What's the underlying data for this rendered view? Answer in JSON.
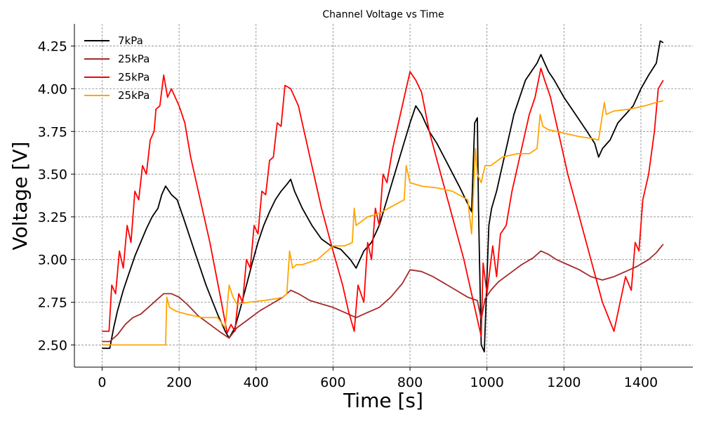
{
  "chart_data": {
    "type": "line",
    "title": "Channel Voltage vs Time",
    "xlabel": "Time [s]",
    "ylabel": "Voltage [V]",
    "xlim": [
      -72,
      1535
    ],
    "ylim": [
      2.37,
      4.38
    ],
    "xticks": [
      0,
      200,
      400,
      600,
      800,
      1000,
      1200,
      1400
    ],
    "yticks": [
      2.5,
      2.75,
      3.0,
      3.25,
      3.5,
      3.75,
      4.0,
      4.25
    ],
    "xtick_labels": [
      "0",
      "200",
      "400",
      "600",
      "800",
      "1000",
      "1200",
      "1400"
    ],
    "ytick_labels": [
      "2.50",
      "2.75",
      "3.00",
      "3.25",
      "3.50",
      "3.75",
      "4.00",
      "4.25"
    ],
    "grid": true,
    "legend_position": "top-left",
    "series": [
      {
        "name": "7kPa",
        "color": "#000000",
        "x": [
          0,
          20,
          30,
          40,
          55,
          70,
          85,
          100,
          115,
          130,
          145,
          155,
          165,
          180,
          195,
          215,
          240,
          270,
          300,
          320,
          330,
          345,
          360,
          375,
          390,
          405,
          420,
          435,
          450,
          465,
          480,
          490,
          500,
          520,
          545,
          570,
          595,
          620,
          645,
          660,
          680,
          700,
          720,
          740,
          760,
          780,
          800,
          815,
          830,
          850,
          870,
          900,
          930,
          960,
          968,
          975,
          978,
          985,
          993,
          1000,
          1005,
          1012,
          1025,
          1040,
          1055,
          1070,
          1085,
          1100,
          1115,
          1130,
          1140,
          1150,
          1160,
          1175,
          1200,
          1230,
          1260,
          1280,
          1290,
          1300,
          1320,
          1340,
          1360,
          1380,
          1400,
          1420,
          1440,
          1450,
          1458
        ],
        "y": [
          2.48,
          2.48,
          2.6,
          2.7,
          2.82,
          2.92,
          3.02,
          3.1,
          3.18,
          3.25,
          3.3,
          3.38,
          3.43,
          3.38,
          3.35,
          3.22,
          3.05,
          2.85,
          2.68,
          2.58,
          2.54,
          2.6,
          2.72,
          2.85,
          2.98,
          3.1,
          3.2,
          3.28,
          3.35,
          3.4,
          3.44,
          3.47,
          3.4,
          3.3,
          3.2,
          3.12,
          3.08,
          3.06,
          3.0,
          2.95,
          3.05,
          3.1,
          3.2,
          3.35,
          3.5,
          3.65,
          3.8,
          3.9,
          3.85,
          3.75,
          3.68,
          3.55,
          3.42,
          3.28,
          3.8,
          3.83,
          3.3,
          2.5,
          2.46,
          2.9,
          3.2,
          3.3,
          3.4,
          3.55,
          3.7,
          3.85,
          3.95,
          4.05,
          4.1,
          4.15,
          4.2,
          4.15,
          4.1,
          4.05,
          3.95,
          3.85,
          3.75,
          3.68,
          3.6,
          3.65,
          3.7,
          3.8,
          3.85,
          3.9,
          4.0,
          4.08,
          4.15,
          4.28,
          4.27
        ]
      },
      {
        "name": "25kPa",
        "color": "#a52a2a",
        "x": [
          0,
          20,
          40,
          60,
          80,
          100,
          120,
          140,
          160,
          180,
          200,
          220,
          250,
          280,
          310,
          330,
          350,
          380,
          410,
          440,
          470,
          490,
          510,
          540,
          570,
          600,
          630,
          660,
          690,
          720,
          750,
          780,
          800,
          830,
          860,
          890,
          920,
          950,
          975,
          985,
          995,
          1010,
          1030,
          1060,
          1090,
          1120,
          1140,
          1160,
          1180,
          1210,
          1240,
          1270,
          1300,
          1330,
          1360,
          1390,
          1420,
          1440,
          1458
        ],
        "y": [
          2.52,
          2.52,
          2.56,
          2.62,
          2.66,
          2.68,
          2.72,
          2.76,
          2.8,
          2.8,
          2.78,
          2.74,
          2.67,
          2.62,
          2.57,
          2.54,
          2.6,
          2.65,
          2.7,
          2.74,
          2.78,
          2.82,
          2.8,
          2.76,
          2.74,
          2.72,
          2.69,
          2.66,
          2.69,
          2.72,
          2.78,
          2.86,
          2.94,
          2.93,
          2.9,
          2.86,
          2.82,
          2.78,
          2.76,
          2.65,
          2.77,
          2.82,
          2.87,
          2.92,
          2.97,
          3.01,
          3.05,
          3.03,
          3.0,
          2.97,
          2.94,
          2.9,
          2.88,
          2.9,
          2.93,
          2.96,
          3.0,
          3.04,
          3.09
        ]
      },
      {
        "name": "25kPa",
        "color": "#ff0000",
        "x": [
          0,
          18,
          25,
          35,
          45,
          55,
          65,
          75,
          85,
          95,
          105,
          115,
          125,
          135,
          140,
          150,
          160,
          170,
          180,
          200,
          215,
          230,
          250,
          280,
          310,
          325,
          335,
          345,
          355,
          365,
          375,
          385,
          395,
          405,
          415,
          425,
          435,
          445,
          455,
          465,
          475,
          490,
          510,
          540,
          570,
          600,
          625,
          640,
          655,
          665,
          680,
          690,
          700,
          710,
          720,
          730,
          740,
          755,
          770,
          785,
          800,
          815,
          830,
          850,
          880,
          910,
          940,
          965,
          985,
          990,
          1000,
          1015,
          1025,
          1035,
          1050,
          1065,
          1080,
          1095,
          1110,
          1125,
          1140,
          1150,
          1165,
          1175,
          1190,
          1210,
          1240,
          1270,
          1300,
          1330,
          1360,
          1375,
          1385,
          1395,
          1405,
          1420,
          1435,
          1445,
          1458
        ],
        "y": [
          2.58,
          2.58,
          2.85,
          2.8,
          3.05,
          2.95,
          3.2,
          3.1,
          3.4,
          3.35,
          3.55,
          3.5,
          3.7,
          3.75,
          3.88,
          3.9,
          4.08,
          3.95,
          4.0,
          3.9,
          3.8,
          3.6,
          3.4,
          3.1,
          2.75,
          2.57,
          2.62,
          2.58,
          2.8,
          2.75,
          3.0,
          2.95,
          3.2,
          3.15,
          3.4,
          3.38,
          3.58,
          3.6,
          3.8,
          3.78,
          4.02,
          4.0,
          3.9,
          3.6,
          3.3,
          3.05,
          2.85,
          2.7,
          2.58,
          2.85,
          2.75,
          3.1,
          3.0,
          3.3,
          3.2,
          3.5,
          3.45,
          3.65,
          3.8,
          3.95,
          4.1,
          4.05,
          3.98,
          3.75,
          3.5,
          3.25,
          3.0,
          2.75,
          2.55,
          2.98,
          2.8,
          3.08,
          2.9,
          3.15,
          3.2,
          3.4,
          3.55,
          3.7,
          3.85,
          3.95,
          4.12,
          4.05,
          3.95,
          3.85,
          3.7,
          3.5,
          3.25,
          3.0,
          2.75,
          2.58,
          2.9,
          2.82,
          3.1,
          3.05,
          3.35,
          3.5,
          3.75,
          4.0,
          4.05
        ]
      },
      {
        "name": "25kPa",
        "color": "#ffa500",
        "x": [
          0,
          100,
          165,
          168,
          175,
          190,
          220,
          260,
          300,
          320,
          330,
          340,
          350,
          380,
          420,
          450,
          470,
          480,
          487,
          495,
          505,
          520,
          560,
          600,
          630,
          650,
          655,
          660,
          690,
          720,
          760,
          785,
          790,
          800,
          830,
          870,
          910,
          950,
          960,
          965,
          970,
          975,
          985,
          995,
          1010,
          1040,
          1080,
          1110,
          1130,
          1138,
          1145,
          1160,
          1200,
          1240,
          1270,
          1290,
          1300,
          1305,
          1310,
          1330,
          1370,
          1410,
          1440,
          1458
        ],
        "y": [
          2.5,
          2.5,
          2.5,
          2.78,
          2.72,
          2.7,
          2.68,
          2.66,
          2.66,
          2.6,
          2.85,
          2.78,
          2.74,
          2.75,
          2.76,
          2.77,
          2.78,
          2.8,
          3.05,
          2.95,
          2.97,
          2.97,
          3.0,
          3.08,
          3.08,
          3.1,
          3.3,
          3.2,
          3.25,
          3.27,
          3.32,
          3.35,
          3.55,
          3.45,
          3.43,
          3.42,
          3.4,
          3.35,
          3.15,
          3.4,
          3.65,
          3.5,
          3.45,
          3.55,
          3.55,
          3.6,
          3.62,
          3.62,
          3.65,
          3.85,
          3.78,
          3.76,
          3.74,
          3.72,
          3.71,
          3.7,
          3.85,
          3.92,
          3.85,
          3.87,
          3.88,
          3.9,
          3.92,
          3.93
        ]
      }
    ]
  }
}
